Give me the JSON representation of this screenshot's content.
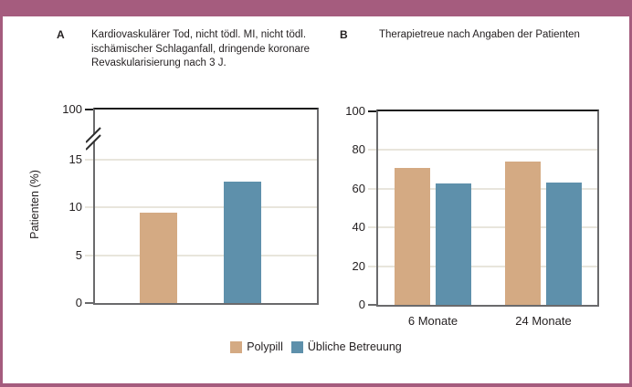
{
  "colors": {
    "accent": "#a55c7e",
    "polypill": "#d4aa83",
    "usual_care": "#5e90ab",
    "gridline": "#e8e5dc",
    "axis": "#6a6a6c",
    "top_line": "#1c1c1c",
    "text": "#231f20"
  },
  "legend": {
    "items": [
      {
        "label": "Polypill",
        "color_key": "polypill"
      },
      {
        "label": "Übliche Betreuung",
        "color_key": "usual_care"
      }
    ]
  },
  "chart_data": [
    {
      "id": "A",
      "type": "bar",
      "panel_label": "A",
      "title": "Kardiovaskulärer Tod, nicht tödl. MI, nicht tödl. ischämischer Schlaganfall, dringende koronare Revaskularisierung nach 3 J.",
      "ylabel": "Patienten (%)",
      "broken_axis": true,
      "yticks_lower": [
        0,
        5,
        10,
        15
      ],
      "ytick_top": 100,
      "categories": [
        ""
      ],
      "series": [
        {
          "name": "Polypill",
          "values": [
            9.5
          ]
        },
        {
          "name": "Übliche Betreuung",
          "values": [
            12.7
          ]
        }
      ],
      "grid": true,
      "legend_position": "bottom"
    },
    {
      "id": "B",
      "type": "bar",
      "panel_label": "B",
      "title": "Therapietreue nach Angaben der Patienten",
      "ylim": [
        0,
        100
      ],
      "yticks": [
        0,
        20,
        40,
        60,
        80,
        100
      ],
      "categories": [
        "6 Monate",
        "24 Monate"
      ],
      "series": [
        {
          "name": "Polypill",
          "values": [
            70.6,
            74.1
          ]
        },
        {
          "name": "Übliche Betreuung",
          "values": [
            62.7,
            63.2
          ]
        }
      ],
      "grid": true,
      "legend_position": "bottom"
    }
  ]
}
